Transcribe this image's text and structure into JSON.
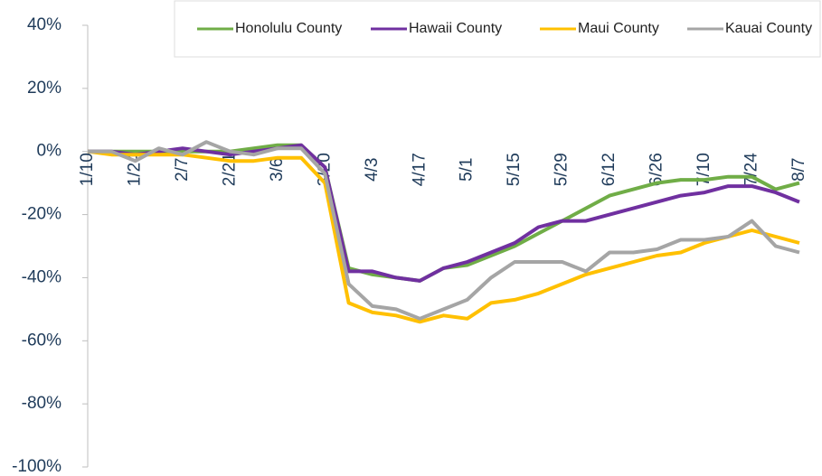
{
  "chart_data": {
    "type": "line",
    "categories": [
      "1/10",
      null,
      "1/24",
      null,
      "2/7",
      null,
      "2/21",
      null,
      "3/6",
      null,
      "3/20",
      null,
      "4/3",
      null,
      "4/17",
      null,
      "5/1",
      null,
      "5/15",
      null,
      "5/29",
      null,
      "6/12",
      null,
      "6/26",
      null,
      "7/10",
      null,
      "7/24",
      null,
      "8/7"
    ],
    "series": [
      {
        "name": "Honolulu County",
        "color": "#70ad47",
        "values": [
          0,
          0,
          0,
          0,
          0,
          0,
          0,
          1,
          2,
          2,
          -5,
          -37,
          -39,
          -40,
          -41,
          -37,
          -36,
          -33,
          -30,
          -26,
          -22,
          -18,
          -14,
          -12,
          -10,
          -9,
          -9,
          -8,
          -8,
          -12,
          -10
        ]
      },
      {
        "name": "Hawaii County",
        "color": "#7030a0",
        "values": [
          0,
          0,
          -1,
          0,
          1,
          0,
          -1,
          0,
          1,
          2,
          -5,
          -38,
          -38,
          -40,
          -41,
          -37,
          -35,
          -32,
          -29,
          -24,
          -22,
          -22,
          -20,
          -18,
          -16,
          -14,
          -13,
          -11,
          -11,
          -13,
          -16
        ]
      },
      {
        "name": "Maui County",
        "color": "#ffc000",
        "values": [
          0,
          -1,
          -1,
          -1,
          -1,
          -2,
          -3,
          -3,
          -2,
          -2,
          -10,
          -48,
          -51,
          -52,
          -54,
          -52,
          -53,
          -48,
          -47,
          -45,
          -42,
          -39,
          -37,
          -35,
          -33,
          -32,
          -29,
          -27,
          -25,
          -27,
          -29
        ]
      },
      {
        "name": "Kauai County",
        "color": "#a5a5a5",
        "values": [
          0,
          0,
          -3,
          1,
          -1,
          3,
          0,
          -1,
          1,
          1,
          -7,
          -42,
          -49,
          -50,
          -53,
          -50,
          -47,
          -40,
          -35,
          -35,
          -35,
          -38,
          -32,
          -32,
          -31,
          -28,
          -28,
          -27,
          -22,
          -30,
          -32
        ]
      }
    ],
    "ylim": [
      -100,
      40
    ],
    "yticks": [
      {
        "value": 40,
        "label": "40%"
      },
      {
        "value": 20,
        "label": "20%"
      },
      {
        "value": 0,
        "label": "0%"
      },
      {
        "value": -20,
        "label": "-20%"
      },
      {
        "value": -40,
        "label": "-40%"
      },
      {
        "value": -60,
        "label": "-60%"
      },
      {
        "value": -80,
        "label": "-80%"
      },
      {
        "value": -100,
        "label": "-100%"
      }
    ]
  }
}
